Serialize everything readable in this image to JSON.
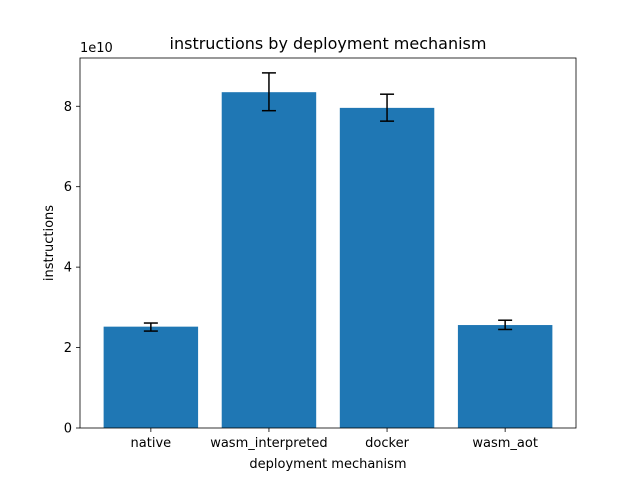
{
  "chart_data": {
    "type": "bar",
    "title": "instructions by deployment mechanism",
    "xlabel": "deployment mechanism",
    "ylabel": "instructions",
    "y_offset_label": "1e10",
    "y_scale_factor": 10000000000,
    "categories": [
      "native",
      "wasm_interpreted",
      "docker",
      "wasm_aot"
    ],
    "values": [
      25200000000,
      83500000000,
      79600000000,
      25600000000
    ],
    "error_low": [
      24100000000,
      78900000000,
      76300000000,
      24500000000
    ],
    "error_high": [
      26100000000,
      88300000000,
      83000000000,
      26800000000
    ],
    "ylim": [
      0,
      92000000000
    ],
    "yticks": [
      0,
      20000000000,
      40000000000,
      60000000000,
      80000000000
    ],
    "ytick_labels": [
      "0",
      "2",
      "4",
      "6",
      "8"
    ],
    "bar_color": "#1f77b4",
    "error_color": "#000000",
    "grid": false,
    "legend": "none"
  }
}
